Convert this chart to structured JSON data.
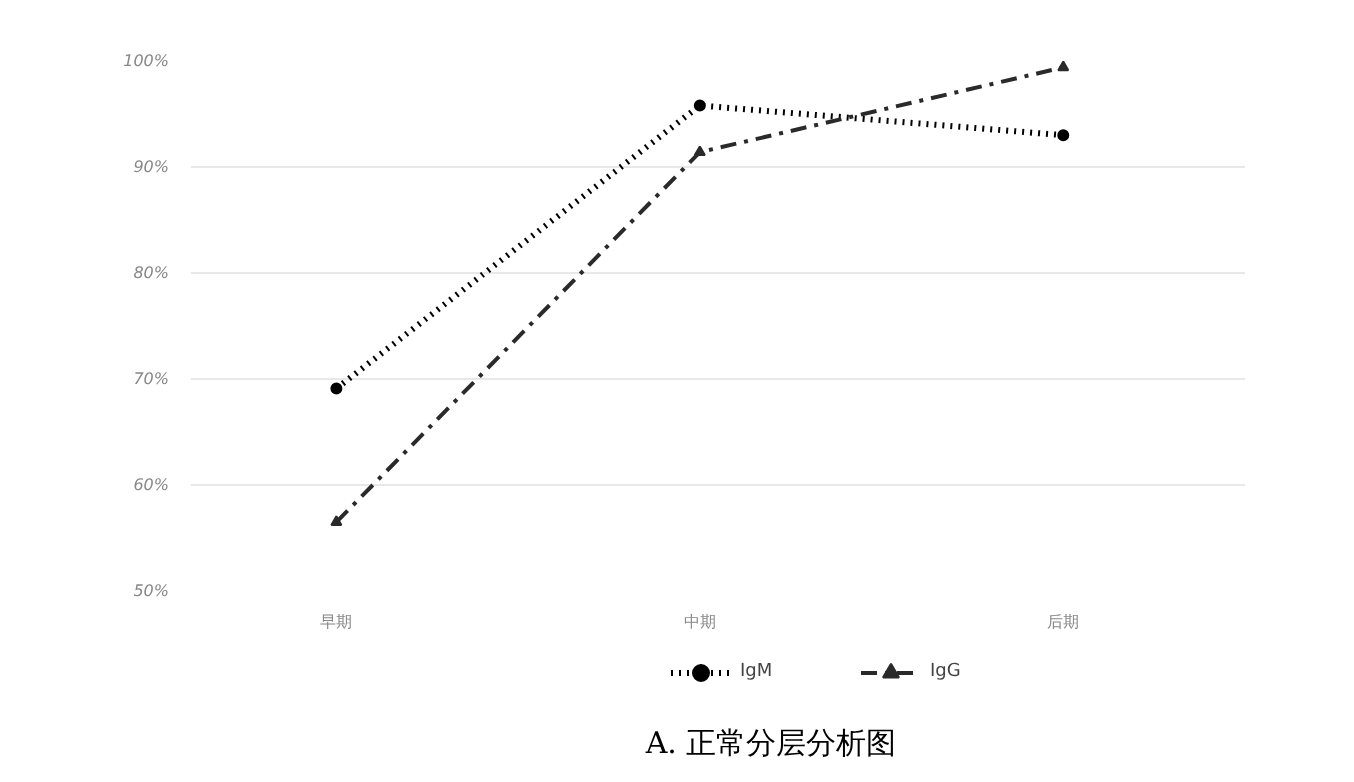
{
  "chart_data": {
    "type": "line",
    "title": "A. 正常分层分析图",
    "categories": [
      "早期",
      "中期",
      "后期"
    ],
    "series": [
      {
        "name": "IgM",
        "color": "#000000",
        "values": [
          69.1,
          95.8,
          93.0
        ],
        "line_style": "dotted",
        "marker": "circle"
      },
      {
        "name": "IgG",
        "color": "#2a2a2a",
        "values": [
          56.5,
          91.4,
          99.4
        ],
        "line_style": "dashdot",
        "marker": "triangle"
      }
    ],
    "ylim": [
      50,
      100
    ],
    "yticks": [
      {
        "value": 50,
        "label": "50%"
      },
      {
        "value": 60,
        "label": "60%"
      },
      {
        "value": 70,
        "label": "70%"
      },
      {
        "value": 80,
        "label": "80%"
      },
      {
        "value": 90,
        "label": "90%"
      },
      {
        "value": 100,
        "label": "100%"
      }
    ],
    "grid": "y",
    "legend": "bottom"
  }
}
